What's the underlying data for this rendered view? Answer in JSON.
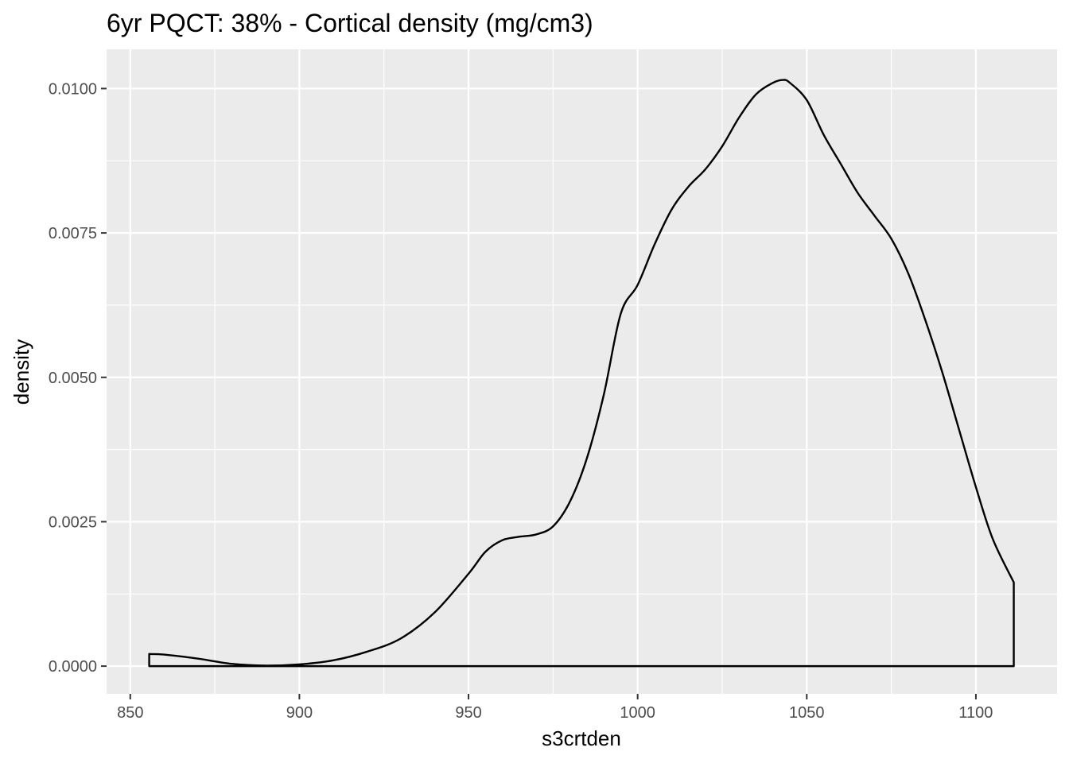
{
  "chart_data": {
    "type": "area",
    "title": "6yr PQCT: 38% - Cortical density (mg/cm3)",
    "xlabel": "s3crtden",
    "ylabel": "density",
    "xlim": [
      843,
      1124
    ],
    "ylim": [
      -0.00048,
      0.01068
    ],
    "x_ticks": [
      850,
      900,
      950,
      1000,
      1050,
      1100
    ],
    "x_tick_labels": [
      "850",
      "900",
      "950",
      "1000",
      "1050",
      "1100"
    ],
    "y_ticks": [
      0.0,
      0.0025,
      0.005,
      0.0075,
      0.01
    ],
    "y_tick_labels": [
      "0.0000",
      "0.0025",
      "0.0050",
      "0.0075",
      "0.0100"
    ],
    "grid": true,
    "background": "#ebebeb",
    "grid_color": "#ffffff",
    "line_color": "#000000",
    "series": [
      {
        "x": [
          855.6,
          860,
          870,
          880,
          890,
          900,
          910,
          920,
          930,
          940,
          950,
          955,
          960,
          965,
          970,
          975,
          980,
          985,
          990,
          995,
          1000,
          1005,
          1010,
          1015,
          1020,
          1025,
          1030,
          1035,
          1040,
          1043,
          1045,
          1050,
          1055,
          1060,
          1065,
          1070,
          1075,
          1080,
          1085,
          1090,
          1095,
          1100,
          1105,
          1111.2
        ],
        "y": [
          0.00021,
          0.0002,
          0.00013,
          4e-05,
          1e-05,
          3e-05,
          0.0001,
          0.00025,
          0.00048,
          0.00093,
          0.0016,
          0.00198,
          0.00218,
          0.00224,
          0.00228,
          0.00242,
          0.00285,
          0.0036,
          0.0047,
          0.0061,
          0.0066,
          0.0073,
          0.0079,
          0.0083,
          0.0086,
          0.009,
          0.0095,
          0.0099,
          0.0101,
          0.01015,
          0.0101,
          0.0098,
          0.0092,
          0.0087,
          0.0082,
          0.0078,
          0.0074,
          0.0068,
          0.006,
          0.0051,
          0.0041,
          0.0031,
          0.0022,
          0.00145
        ]
      }
    ]
  }
}
